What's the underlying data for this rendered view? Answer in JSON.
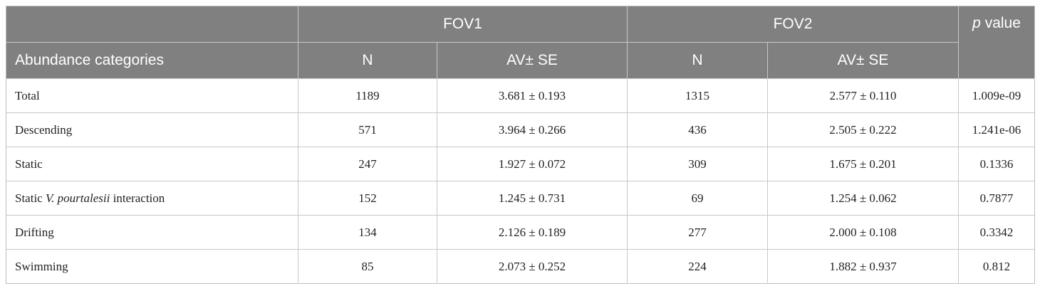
{
  "table": {
    "header": {
      "groups": [
        "FOV1",
        "FOV2"
      ],
      "p_value": [
        "p",
        "value"
      ],
      "row_label": "Abundance categories",
      "columns": [
        "N",
        "AV± SE",
        "N",
        "AV± SE"
      ]
    },
    "rows": [
      [
        [
          "Total"
        ],
        "1189",
        "3.681 ± 0.193",
        "1315",
        "2.577 ± 0.110",
        "1.009e-09"
      ],
      [
        [
          "Descending"
        ],
        "571",
        "3.964 ± 0.266",
        "436",
        "2.505 ± 0.222",
        "1.241e-06"
      ],
      [
        [
          "Static"
        ],
        "247",
        "1.927 ± 0.072",
        "309",
        "1.675 ± 0.201",
        "0.1336"
      ],
      [
        [
          "Static",
          "V. pourtalesii",
          "interaction"
        ],
        "152",
        "1.245 ± 0.731",
        "69",
        "1.254 ± 0.062",
        "0.7877"
      ],
      [
        [
          "Drifting"
        ],
        "134",
        "2.126 ± 0.189",
        "277",
        "2.000 ± 0.108",
        "0.3342"
      ],
      [
        [
          "Swimming"
        ],
        "85",
        "2.073 ± 0.252",
        "224",
        "1.882 ± 0.937",
        "0.812"
      ]
    ]
  }
}
